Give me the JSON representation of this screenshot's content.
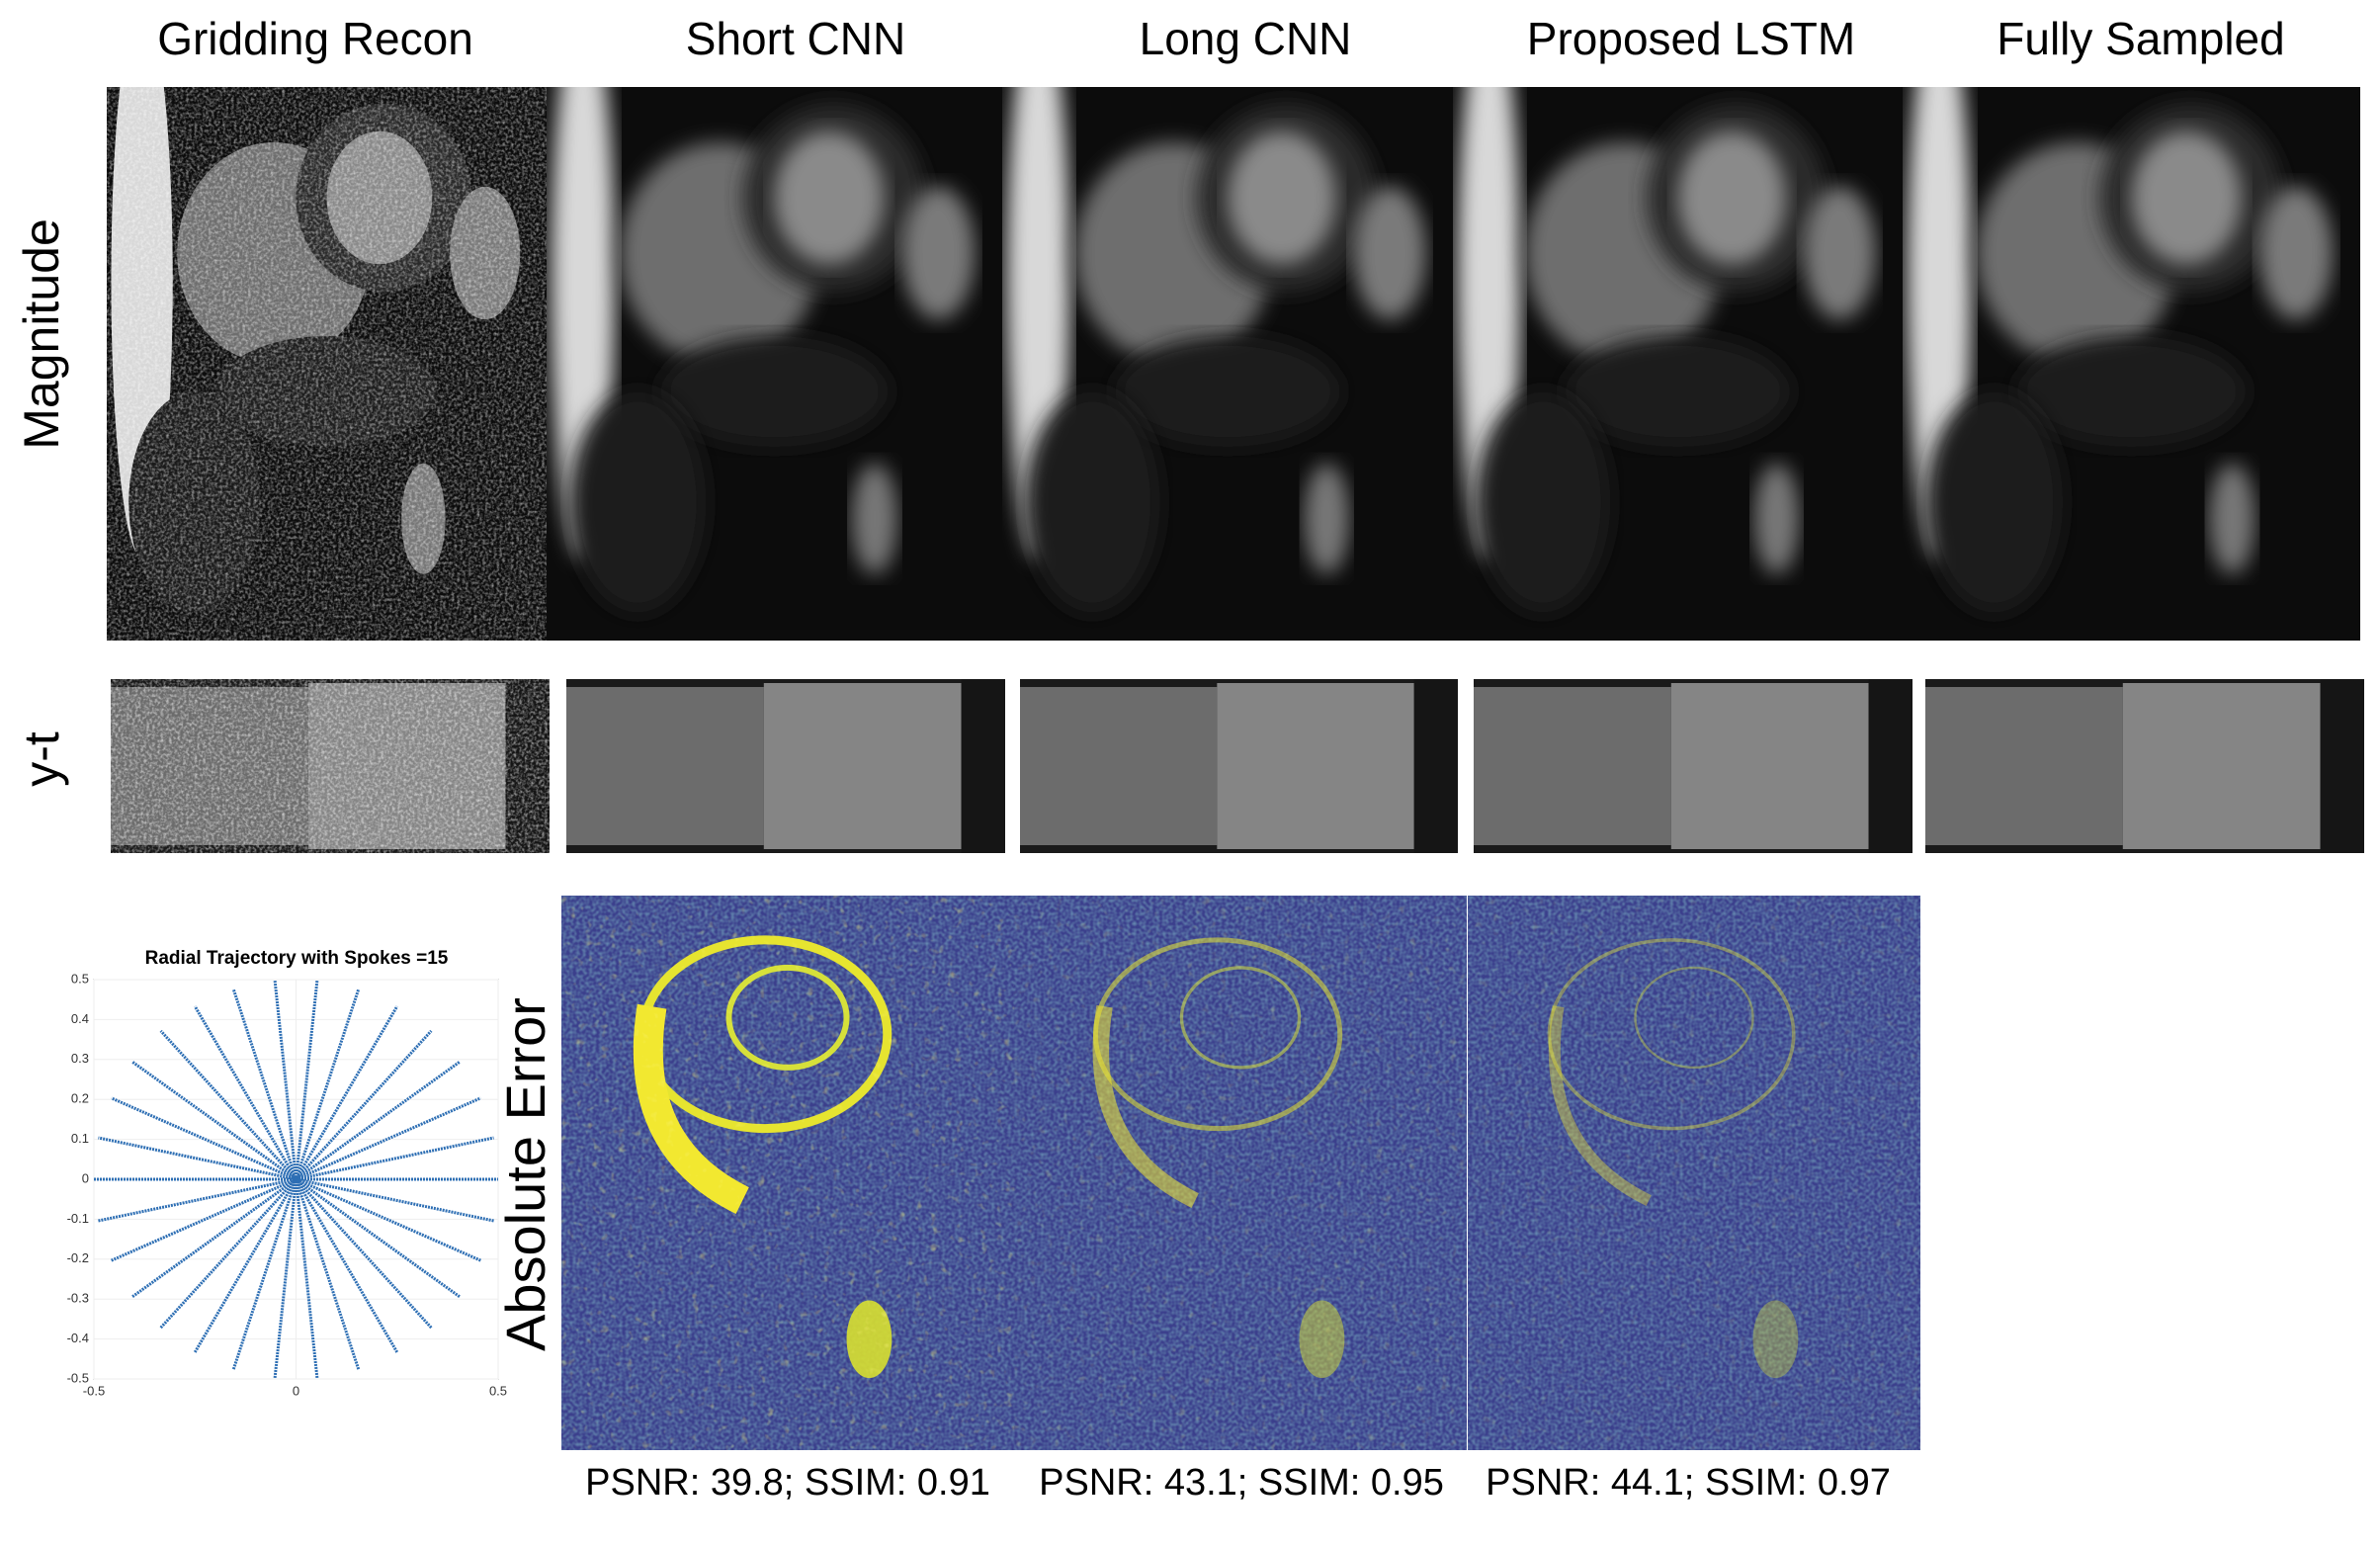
{
  "column_titles": [
    "Gridding Recon",
    "Short CNN",
    "Long CNN",
    "Proposed LSTM",
    "Fully Sampled"
  ],
  "row_labels": {
    "magnitude": "Magnitude",
    "yt": "y-t",
    "error": "Absolute Error"
  },
  "metrics": [
    "PSNR: 39.8; SSIM: 0.91",
    "PSNR: 43.1; SSIM: 0.95",
    "PSNR: 44.1; SSIM: 0.97"
  ],
  "chart_data": {
    "type": "line",
    "title": "Radial Trajectory with Spokes =15",
    "spokes": 15,
    "color": "#2e6fb4",
    "xlim": [
      -0.5,
      0.5
    ],
    "ylim": [
      -0.5,
      0.5
    ],
    "xticks": [
      -0.5,
      0,
      0.5
    ],
    "yticks": [
      0.5,
      0.4,
      0.3,
      0.2,
      0.1,
      0,
      -0.1,
      -0.2,
      -0.3,
      -0.4,
      -0.5
    ],
    "grid": true
  }
}
